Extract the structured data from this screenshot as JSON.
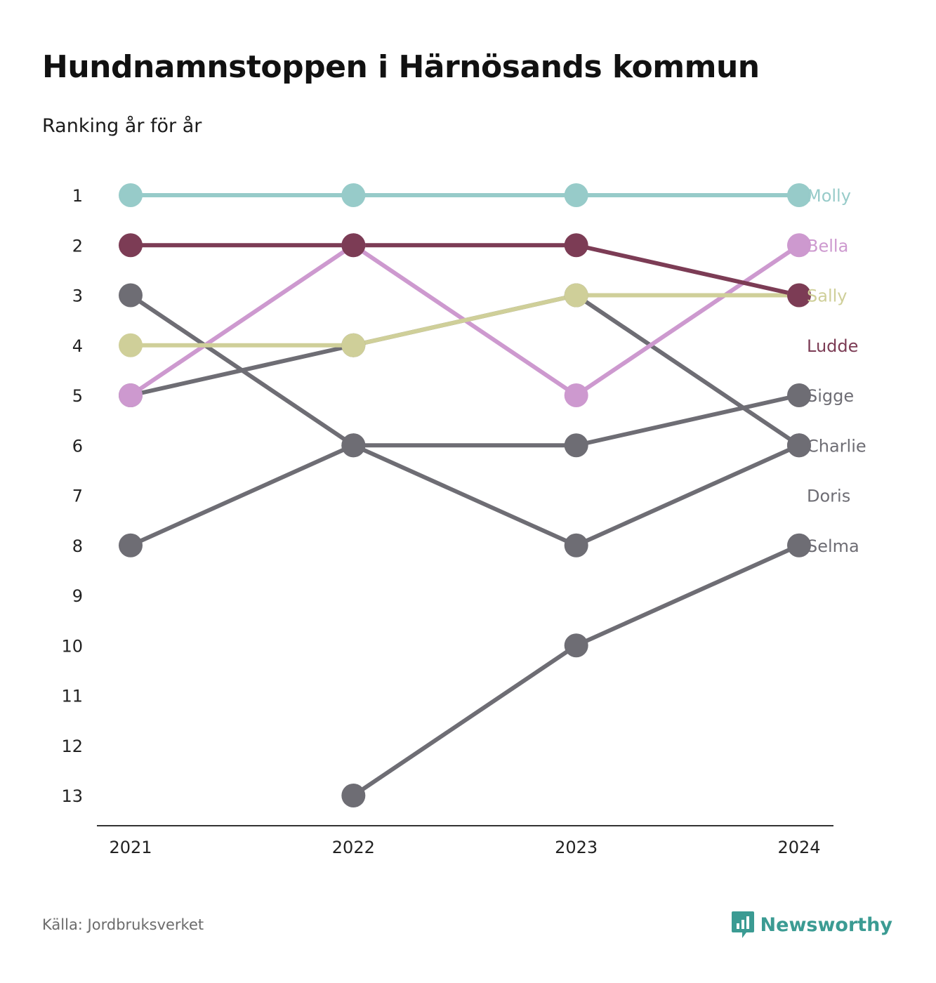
{
  "header": {
    "title": "Hundnamnstoppen i Härnösands kommun",
    "subtitle": "Ranking år för år"
  },
  "footer": {
    "source": "Källa: Jordbruksverket",
    "brand": "Newsworthy",
    "brand_icon": "bar-chart-speech-bubble-icon",
    "brand_color": "#3b9b93"
  },
  "chart_data": {
    "type": "line",
    "x": [
      "2021",
      "2022",
      "2023",
      "2024"
    ],
    "y_ticks": [
      "1",
      "2",
      "3",
      "4",
      "5",
      "6",
      "7",
      "8",
      "9",
      "10",
      "11",
      "12",
      "13"
    ],
    "ylim": [
      1,
      13
    ],
    "y_reversed": true,
    "grid": false,
    "legend": "labels at right end of lines",
    "series": [
      {
        "name": "Molly",
        "color": "#97cbc9",
        "values": [
          1,
          1,
          1,
          1
        ]
      },
      {
        "name": "Bella",
        "color": "#cd99cf",
        "values": [
          5,
          2,
          5,
          2
        ]
      },
      {
        "name": "Sally",
        "color": "#cfcf99",
        "values": [
          4,
          4,
          3,
          3
        ]
      },
      {
        "name": "Ludde",
        "color": "#7c3c55",
        "values": [
          2,
          2,
          2,
          3
        ]
      },
      {
        "name": "Sigge",
        "color": "#6e6d74",
        "values": [
          8,
          6,
          6,
          5
        ]
      },
      {
        "name": "Charlie",
        "color": "#6e6d74",
        "values": [
          3,
          6,
          8,
          6
        ]
      },
      {
        "name": "Doris",
        "color": "#6e6d74",
        "values": [
          5,
          4,
          3,
          6
        ]
      },
      {
        "name": "Selma",
        "color": "#6e6d74",
        "values": [
          null,
          13,
          10,
          8
        ]
      }
    ]
  }
}
